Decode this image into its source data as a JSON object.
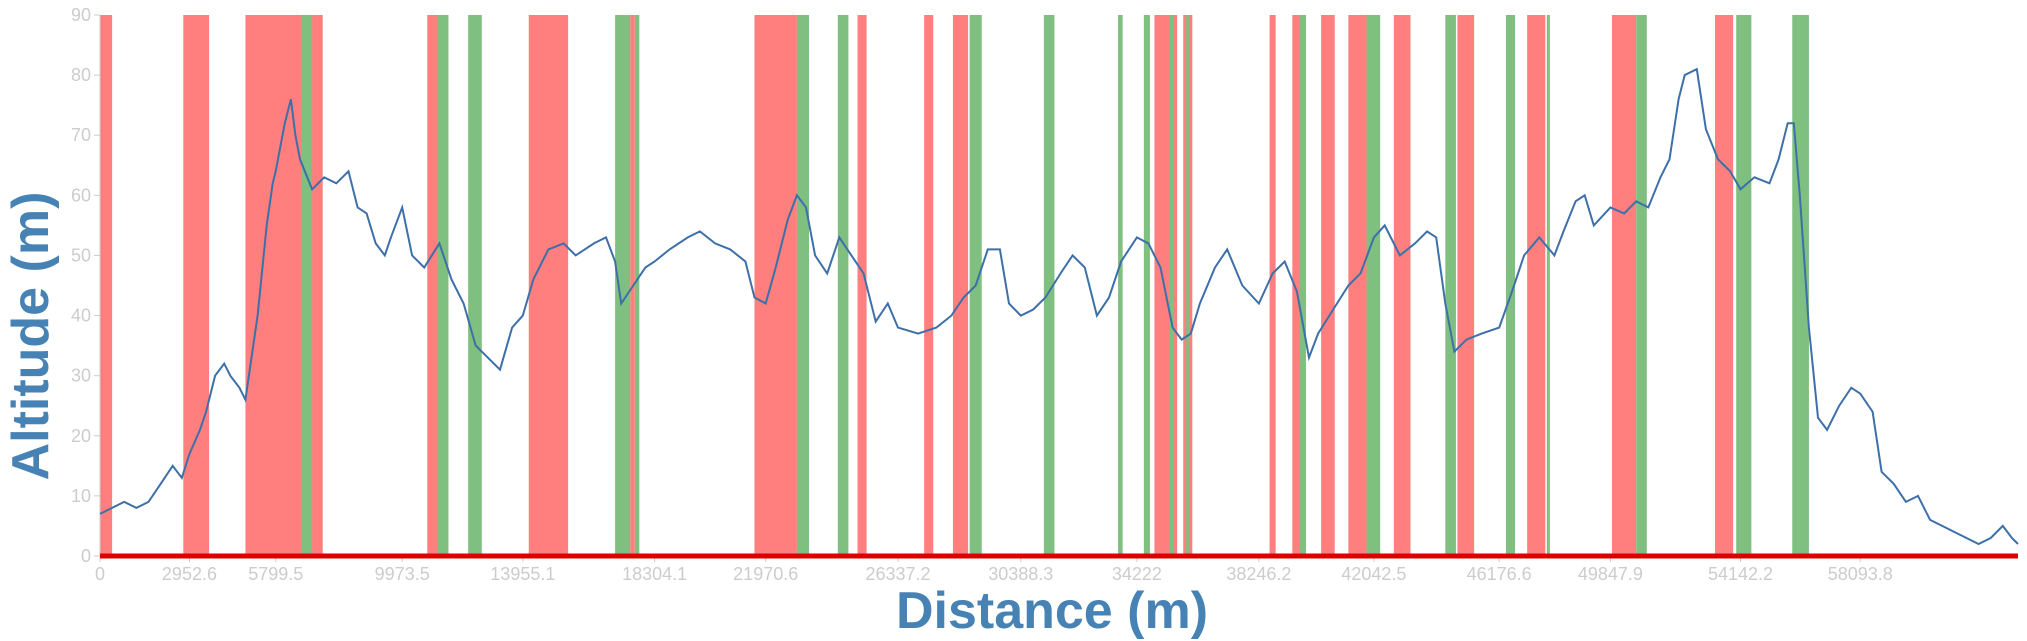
{
  "chart_data": {
    "type": "area",
    "xlabel": "Distance (m)",
    "ylabel": "Altitude (m)",
    "xlim": [
      0,
      63300
    ],
    "ylim": [
      0,
      90
    ],
    "x_tick_labels": [
      "0",
      "2952.6",
      "5799.5",
      "9973.5",
      "13955.1",
      "18304.1",
      "21970.6",
      "26337.2",
      "30388.3",
      "34222",
      "38246.2",
      "42042.5",
      "46176.6",
      "49847.9",
      "54142.2",
      "58093.8"
    ],
    "y_tick_labels": [
      "0",
      "10",
      "20",
      "30",
      "40",
      "50",
      "60",
      "70",
      "80",
      "90"
    ],
    "colors": {
      "line": "#3d6fa8",
      "uphill": "#ff7f7f",
      "downhill": "#7fbf7f",
      "baseline": "#dd0000",
      "axis_title": "#4682b4",
      "tick": "#cccccc"
    },
    "series": [
      {
        "values": [
          [
            0,
            7
          ],
          [
            400,
            8
          ],
          [
            800,
            9
          ],
          [
            1200,
            8
          ],
          [
            1600,
            9
          ],
          [
            2000,
            12
          ],
          [
            2400,
            15
          ],
          [
            2700,
            13
          ],
          [
            2952.6,
            17
          ],
          [
            3300,
            21
          ],
          [
            3500,
            24
          ],
          [
            3800,
            30
          ],
          [
            4100,
            32
          ],
          [
            4300,
            30
          ],
          [
            4600,
            28
          ],
          [
            4800,
            26
          ],
          [
            5200,
            40
          ],
          [
            5500,
            55
          ],
          [
            5700,
            62
          ],
          [
            5799.5,
            64
          ],
          [
            6100,
            72
          ],
          [
            6300,
            76
          ],
          [
            6450,
            70
          ],
          [
            6600,
            66
          ],
          [
            7000,
            61
          ],
          [
            7400,
            63
          ],
          [
            7800,
            62
          ],
          [
            8200,
            64
          ],
          [
            8500,
            58
          ],
          [
            8800,
            57
          ],
          [
            9100,
            52
          ],
          [
            9400,
            50
          ],
          [
            9600,
            53
          ],
          [
            9973.5,
            58
          ],
          [
            10300,
            50
          ],
          [
            10700,
            48
          ],
          [
            11200,
            52
          ],
          [
            11600,
            46
          ],
          [
            12000,
            42
          ],
          [
            12400,
            35
          ],
          [
            12800,
            33
          ],
          [
            13200,
            31
          ],
          [
            13600,
            38
          ],
          [
            13955.1,
            40
          ],
          [
            14300,
            46
          ],
          [
            14800,
            51
          ],
          [
            15300,
            52
          ],
          [
            15700,
            50
          ],
          [
            16300,
            52
          ],
          [
            16700,
            53
          ],
          [
            17000,
            49
          ],
          [
            17200,
            42
          ],
          [
            17600,
            45
          ],
          [
            18000,
            48
          ],
          [
            18304.1,
            49
          ],
          [
            18800,
            51
          ],
          [
            19400,
            53
          ],
          [
            19800,
            54
          ],
          [
            20300,
            52
          ],
          [
            20800,
            51
          ],
          [
            21300,
            49
          ],
          [
            21600,
            43
          ],
          [
            21970.6,
            42
          ],
          [
            22300,
            48
          ],
          [
            22700,
            56
          ],
          [
            23000,
            60
          ],
          [
            23300,
            58
          ],
          [
            23600,
            50
          ],
          [
            24000,
            47
          ],
          [
            24400,
            53
          ],
          [
            24800,
            50
          ],
          [
            25200,
            47
          ],
          [
            25600,
            39
          ],
          [
            26000,
            42
          ],
          [
            26337.2,
            38
          ],
          [
            27000,
            37
          ],
          [
            27600,
            38
          ],
          [
            28100,
            40
          ],
          [
            28500,
            43
          ],
          [
            28900,
            45
          ],
          [
            29300,
            51
          ],
          [
            29700,
            51
          ],
          [
            30000,
            42
          ],
          [
            30388.3,
            40
          ],
          [
            30800,
            41
          ],
          [
            31200,
            43
          ],
          [
            31700,
            47
          ],
          [
            32100,
            50
          ],
          [
            32500,
            48
          ],
          [
            32900,
            40
          ],
          [
            33300,
            43
          ],
          [
            33700,
            49
          ],
          [
            34222,
            53
          ],
          [
            34600,
            52
          ],
          [
            35000,
            48
          ],
          [
            35400,
            38
          ],
          [
            35700,
            36
          ],
          [
            36000,
            37
          ],
          [
            36300,
            42
          ],
          [
            36800,
            48
          ],
          [
            37200,
            51
          ],
          [
            37700,
            45
          ],
          [
            38246.2,
            42
          ],
          [
            38700,
            47
          ],
          [
            39100,
            49
          ],
          [
            39500,
            44
          ],
          [
            39900,
            33
          ],
          [
            40200,
            37
          ],
          [
            40700,
            41
          ],
          [
            41200,
            45
          ],
          [
            41600,
            47
          ],
          [
            42042.5,
            53
          ],
          [
            42400,
            55
          ],
          [
            42900,
            50
          ],
          [
            43400,
            52
          ],
          [
            43800,
            54
          ],
          [
            44100,
            53
          ],
          [
            44400,
            42
          ],
          [
            44700,
            34
          ],
          [
            45100,
            36
          ],
          [
            45600,
            37
          ],
          [
            46176.6,
            38
          ],
          [
            46600,
            44
          ],
          [
            47000,
            50
          ],
          [
            47500,
            53
          ],
          [
            48000,
            50
          ],
          [
            48300,
            54
          ],
          [
            48700,
            59
          ],
          [
            49000,
            60
          ],
          [
            49300,
            55
          ],
          [
            49847.9,
            58
          ],
          [
            50300,
            57
          ],
          [
            50700,
            59
          ],
          [
            51100,
            58
          ],
          [
            51500,
            63
          ],
          [
            51800,
            66
          ],
          [
            52100,
            76
          ],
          [
            52300,
            80
          ],
          [
            52700,
            81
          ],
          [
            53000,
            71
          ],
          [
            53400,
            66
          ],
          [
            53800,
            64
          ],
          [
            54142.2,
            61
          ],
          [
            54600,
            63
          ],
          [
            55100,
            62
          ],
          [
            55400,
            66
          ],
          [
            55700,
            72
          ],
          [
            55900,
            72
          ],
          [
            56100,
            60
          ],
          [
            56400,
            38
          ],
          [
            56700,
            23
          ],
          [
            57000,
            21
          ],
          [
            57400,
            25
          ],
          [
            57800,
            28
          ],
          [
            58093.8,
            27
          ],
          [
            58500,
            24
          ],
          [
            58800,
            14
          ],
          [
            59200,
            12
          ],
          [
            59600,
            9
          ],
          [
            60000,
            10
          ],
          [
            60400,
            6
          ],
          [
            60800,
            5
          ],
          [
            61200,
            4
          ],
          [
            61600,
            3
          ],
          [
            62000,
            2
          ],
          [
            62400,
            3
          ],
          [
            62800,
            5
          ],
          [
            63100,
            3
          ],
          [
            63300,
            2
          ]
        ]
      }
    ],
    "uphill_bands": [
      [
        0,
        400
      ],
      [
        2750,
        3600
      ],
      [
        4800,
        6700
      ],
      [
        6950,
        7350
      ],
      [
        10800,
        11200
      ],
      [
        14150,
        15450
      ],
      [
        17500,
        17650
      ],
      [
        21600,
        23000
      ],
      [
        25000,
        25300
      ],
      [
        27200,
        27500
      ],
      [
        28150,
        28650
      ],
      [
        34800,
        35550
      ],
      [
        35750,
        36050
      ],
      [
        38600,
        38800
      ],
      [
        39350,
        39750
      ],
      [
        40300,
        40750
      ],
      [
        41200,
        41800
      ],
      [
        42700,
        43250
      ],
      [
        44800,
        45350
      ],
      [
        47100,
        47700
      ],
      [
        49900,
        50700
      ],
      [
        53300,
        53900
      ]
    ],
    "downhill_bands": [
      [
        6650,
        7000
      ],
      [
        11150,
        11500
      ],
      [
        12150,
        12600
      ],
      [
        17000,
        17500
      ],
      [
        17650,
        17800
      ],
      [
        23000,
        23400
      ],
      [
        24350,
        24700
      ],
      [
        28700,
        29100
      ],
      [
        31150,
        31500
      ],
      [
        33600,
        33750
      ],
      [
        34450,
        34650
      ],
      [
        35300,
        35450
      ],
      [
        35850,
        35950
      ],
      [
        39600,
        39800
      ],
      [
        41800,
        42250
      ],
      [
        44400,
        44750
      ],
      [
        46400,
        46700
      ],
      [
        47750,
        47850
      ],
      [
        50700,
        51050
      ],
      [
        54000,
        54500
      ],
      [
        55850,
        56400
      ]
    ]
  }
}
